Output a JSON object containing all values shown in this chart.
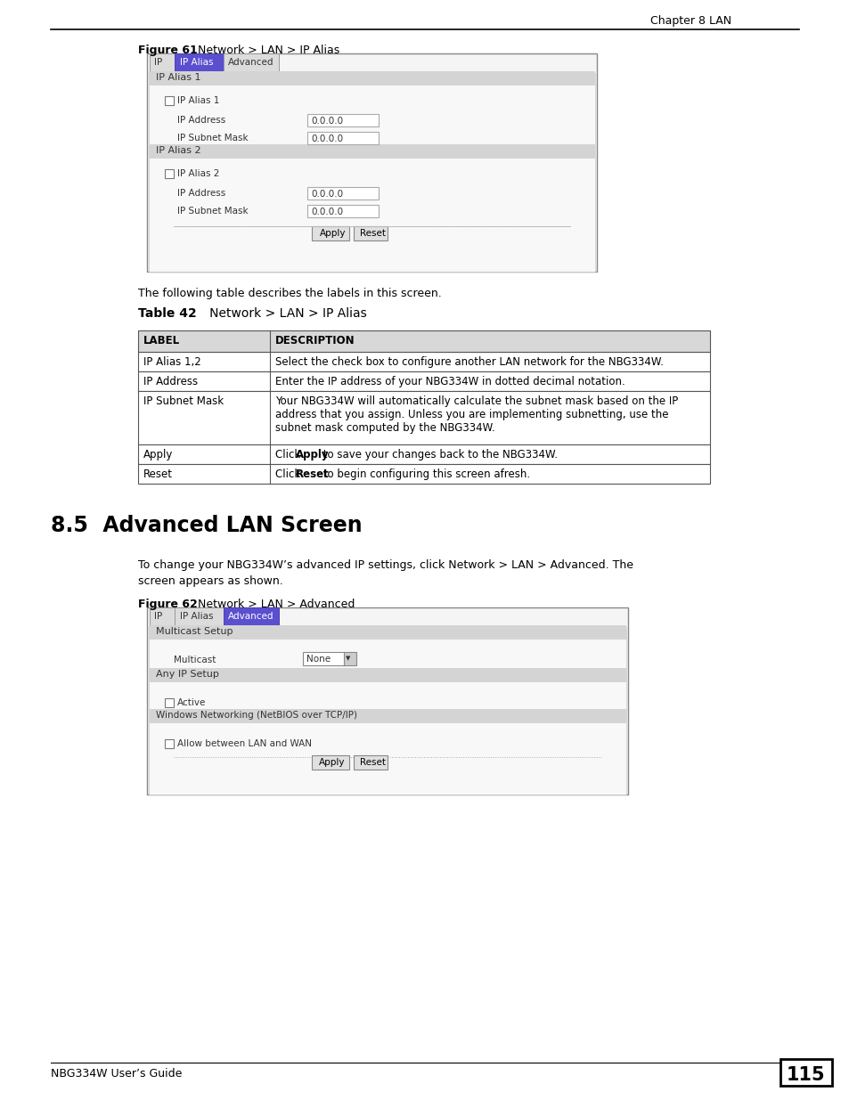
{
  "page_bg": "#ffffff",
  "header_text": "Chapter 8 LAN",
  "tab_blue_color": "#5b4fcf",
  "section_hdr_bg": "#d4d4d4",
  "table_hdr_bg": "#d8d8d8",
  "table_border": "#555555",
  "screen_border": "#888888",
  "screen_bg": "#f5f5f5",
  "content_bg": "#f8f8f8",
  "input_bg": "#ffffff",
  "btn_bg": "#e0e0e0",
  "fig61_bold": "Figure 61",
  "fig61_rest": "   Network > LAN > IP Alias",
  "fig62_bold": "Figure 62",
  "fig62_rest": "   Network > LAN > Advanced",
  "table_intro": "The following table describes the labels in this screen.",
  "table42_bold": "Table 42",
  "table42_rest": "   Network > LAN > IP Alias",
  "section_heading": "8.5  Advanced LAN Screen",
  "para_line1": "To change your NBG334W’s advanced IP settings, click Network > LAN > Advanced. The",
  "para_line2": "screen appears as shown.",
  "footer_left": "NBG334W User’s Guide",
  "footer_page": "115",
  "scr1_tabs": [
    "IP",
    "IP Alias",
    "Advanced"
  ],
  "scr1_active": 1,
  "scr2_tabs": [
    "IP",
    "IP Alias",
    "Advanced"
  ],
  "scr2_active": 2,
  "tbl_rows": [
    [
      "IP Alias 1,2",
      "Select the check box to configure another LAN network for the NBG334W."
    ],
    [
      "IP Address",
      "Enter the IP address of your NBG334W in dotted decimal notation."
    ],
    [
      "IP Subnet Mask",
      "Your NBG334W will automatically calculate the subnet mask based on the IP\naddress that you assign. Unless you are implementing subnetting, use the\nsubnet mask computed by the NBG334W."
    ],
    [
      "Apply",
      "Click |Apply| to save your changes back to the NBG334W."
    ],
    [
      "Reset",
      "Click |Reset| to begin configuring this screen afresh."
    ]
  ]
}
